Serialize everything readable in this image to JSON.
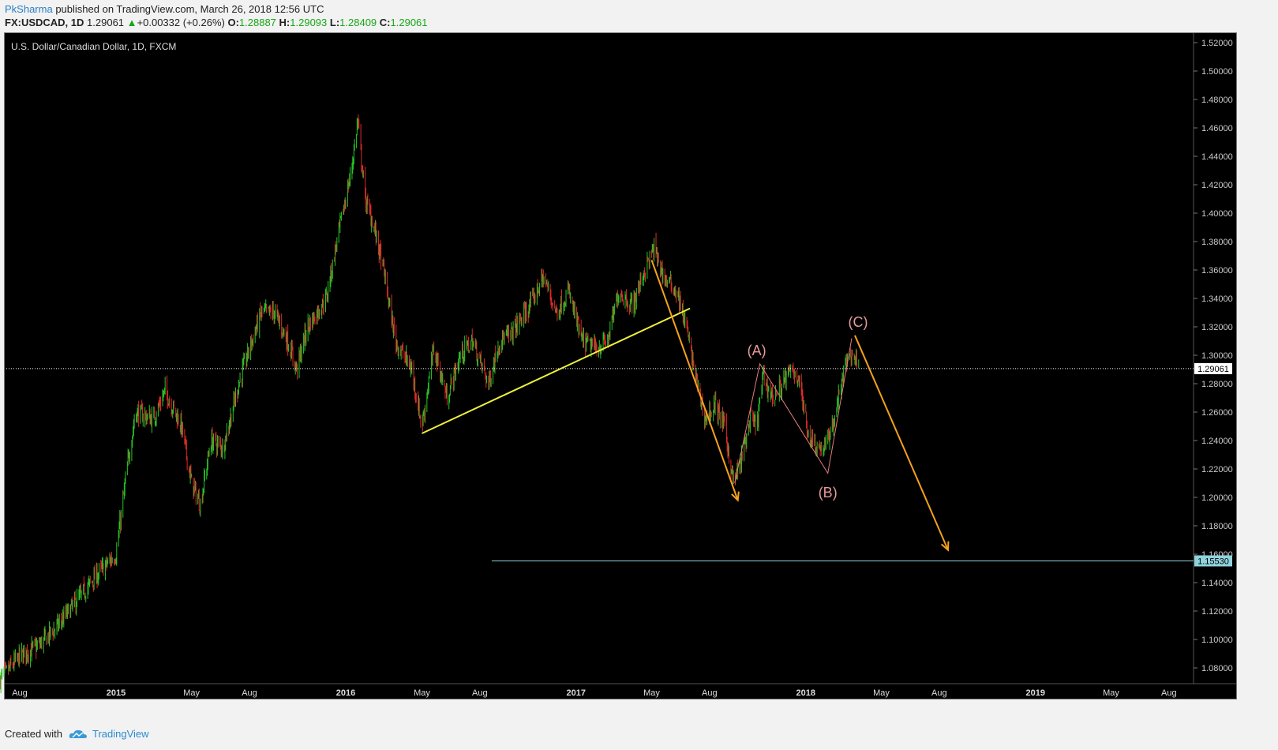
{
  "header": {
    "author": "PkSharma",
    "published": "published on TradingView.com, March 26, 2018 12:56 UTC",
    "symbol": "FX:USDCAD, 1D",
    "last": "1.29061",
    "change_arrow": "▲",
    "change": "+0.00332 (+0.26%)",
    "o_label": "O:",
    "o_value": "1.28887",
    "h_label": "H:",
    "h_value": "1.29093",
    "l_label": "L:",
    "l_value": "1.28409",
    "c_label": "C:",
    "c_value": "1.29061"
  },
  "chart_title": "U.S. Dollar/Canadian Dollar, 1D, FXCM",
  "footer": {
    "created_with": "Created with",
    "brand": "TradingView",
    "logo_icon": "tradingview-cloud-icon"
  },
  "colors": {
    "background": "#000000",
    "up_candle": "#27c427",
    "down_candle": "#e02a2a",
    "trendline": "#f0f03c",
    "projection_arrow": "#f5a21b",
    "wave_lines": "#e47d7d",
    "wave_labels": "#e79a9a",
    "target_line": "#8fd3dc"
  },
  "chart_data": {
    "type": "candlestick",
    "title": "U.S. Dollar/Canadian Dollar, 1D, FXCM",
    "x_tick_labels": [
      "Aug",
      "2015",
      "May",
      "Aug",
      "2016",
      "May",
      "Aug",
      "2017",
      "May",
      "Aug",
      "2018",
      "May",
      "Aug",
      "2019",
      "May",
      "Aug"
    ],
    "y_axis": {
      "range": [
        1.07,
        1.525
      ],
      "tick_labels": [
        "1.08000",
        "1.10000",
        "1.12000",
        "1.14000",
        "1.16000",
        "1.18000",
        "1.20000",
        "1.22000",
        "1.24000",
        "1.26000",
        "1.28000",
        "1.30000",
        "1.32000",
        "1.34000",
        "1.36000",
        "1.38000",
        "1.40000",
        "1.42000",
        "1.44000",
        "1.46000",
        "1.48000",
        "1.50000",
        "1.52000"
      ],
      "ticks": [
        1.08,
        1.1,
        1.12,
        1.14,
        1.16,
        1.18,
        1.2,
        1.22,
        1.24,
        1.26,
        1.28,
        1.3,
        1.32,
        1.34,
        1.36,
        1.38,
        1.4,
        1.42,
        1.44,
        1.46,
        1.48,
        1.5,
        1.52
      ]
    },
    "close_path": [
      [
        "2014-07-01",
        1.072
      ],
      [
        "2014-08-01",
        1.088
      ],
      [
        "2014-09-01",
        1.096
      ],
      [
        "2014-10-01",
        1.11
      ],
      [
        "2014-11-01",
        1.128
      ],
      [
        "2014-12-01",
        1.145
      ],
      [
        "2015-01-01",
        1.16
      ],
      [
        "2015-01-20",
        1.225
      ],
      [
        "2015-02-01",
        1.26
      ],
      [
        "2015-03-01",
        1.255
      ],
      [
        "2015-03-20",
        1.275
      ],
      [
        "2015-04-15",
        1.25
      ],
      [
        "2015-05-01",
        1.21
      ],
      [
        "2015-05-15",
        1.195
      ],
      [
        "2015-06-01",
        1.24
      ],
      [
        "2015-06-20",
        1.235
      ],
      [
        "2015-07-15",
        1.28
      ],
      [
        "2015-08-01",
        1.305
      ],
      [
        "2015-08-20",
        1.33
      ],
      [
        "2015-09-10",
        1.33
      ],
      [
        "2015-10-01",
        1.31
      ],
      [
        "2015-10-15",
        1.29
      ],
      [
        "2015-11-01",
        1.32
      ],
      [
        "2015-12-01",
        1.34
      ],
      [
        "2015-12-20",
        1.385
      ],
      [
        "2016-01-10",
        1.43
      ],
      [
        "2016-01-20",
        1.465
      ],
      [
        "2016-02-01",
        1.41
      ],
      [
        "2016-02-15",
        1.39
      ],
      [
        "2016-03-01",
        1.36
      ],
      [
        "2016-03-20",
        1.31
      ],
      [
        "2016-04-15",
        1.29
      ],
      [
        "2016-05-01",
        1.25
      ],
      [
        "2016-05-20",
        1.305
      ],
      [
        "2016-06-10",
        1.27
      ],
      [
        "2016-07-01",
        1.3
      ],
      [
        "2016-07-20",
        1.31
      ],
      [
        "2016-08-15",
        1.28
      ],
      [
        "2016-09-01",
        1.31
      ],
      [
        "2016-09-20",
        1.315
      ],
      [
        "2016-10-20",
        1.335
      ],
      [
        "2016-11-10",
        1.355
      ],
      [
        "2016-12-01",
        1.33
      ],
      [
        "2016-12-20",
        1.345
      ],
      [
        "2017-01-10",
        1.31
      ],
      [
        "2017-02-01",
        1.305
      ],
      [
        "2017-02-20",
        1.31
      ],
      [
        "2017-03-10",
        1.345
      ],
      [
        "2017-04-01",
        1.335
      ],
      [
        "2017-04-20",
        1.36
      ],
      [
        "2017-05-05",
        1.375
      ],
      [
        "2017-05-20",
        1.355
      ],
      [
        "2017-06-10",
        1.345
      ],
      [
        "2017-06-25",
        1.32
      ],
      [
        "2017-07-10",
        1.285
      ],
      [
        "2017-07-25",
        1.255
      ],
      [
        "2017-08-10",
        1.265
      ],
      [
        "2017-08-25",
        1.25
      ],
      [
        "2017-09-08",
        1.21
      ],
      [
        "2017-09-20",
        1.225
      ],
      [
        "2017-10-05",
        1.255
      ],
      [
        "2017-10-15",
        1.25
      ],
      [
        "2017-10-25",
        1.285
      ],
      [
        "2017-11-10",
        1.27
      ],
      [
        "2017-11-25",
        1.28
      ],
      [
        "2017-12-10",
        1.29
      ],
      [
        "2017-12-20",
        1.285
      ],
      [
        "2018-01-05",
        1.245
      ],
      [
        "2018-01-20",
        1.235
      ],
      [
        "2018-02-01",
        1.235
      ],
      [
        "2018-02-15",
        1.255
      ],
      [
        "2018-03-01",
        1.285
      ],
      [
        "2018-03-10",
        1.3
      ],
      [
        "2018-03-20",
        1.3
      ],
      [
        "2018-03-26",
        1.29061
      ]
    ],
    "last_price": 1.29061,
    "last_price_label": "1.29061",
    "target_level": 1.1553,
    "target_label": "1.15530",
    "annotations": {
      "trendline": [
        [
          "2016-05-01",
          1.245
        ],
        [
          "2017-07-01",
          1.333
        ]
      ],
      "arrow_down_1": [
        [
          "2017-05-01",
          1.367
        ],
        [
          "2017-09-15",
          1.198
        ]
      ],
      "wave_path": [
        [
          "2017-09-10",
          1.21
        ],
        [
          "2017-10-20",
          1.294
        ],
        [
          "2018-02-05",
          1.217
        ],
        [
          "2018-03-15",
          1.312
        ]
      ],
      "wave_labels": [
        {
          "text": "(A)",
          "x": "2017-10-15",
          "y": 1.3
        },
        {
          "text": "(B)",
          "x": "2018-02-05",
          "y": 1.2
        },
        {
          "text": "(C)",
          "x": "2018-03-25",
          "y": 1.32
        }
      ],
      "arrow_down_2": [
        [
          "2018-03-20",
          1.314
        ],
        [
          "2018-08-15",
          1.163
        ]
      ]
    }
  }
}
